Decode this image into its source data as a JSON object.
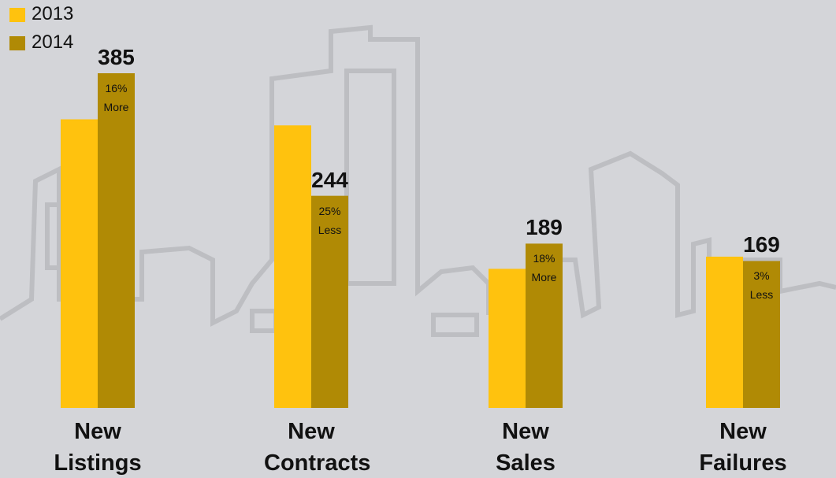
{
  "chart_data": {
    "type": "bar",
    "categories": [
      "New Listings",
      "New Contracts",
      "New Sales",
      "New Failures"
    ],
    "series": [
      {
        "name": "2013",
        "color": "#ffc20e",
        "values": [
          332,
          325,
          160,
          174
        ]
      },
      {
        "name": "2014",
        "color": "#b08a05",
        "values": [
          385,
          244,
          189,
          169
        ],
        "annotations": [
          [
            "16%",
            "More"
          ],
          [
            "25%",
            "Less"
          ],
          [
            "18%",
            "More"
          ],
          [
            "3%",
            "Less"
          ]
        ]
      }
    ]
  }
}
